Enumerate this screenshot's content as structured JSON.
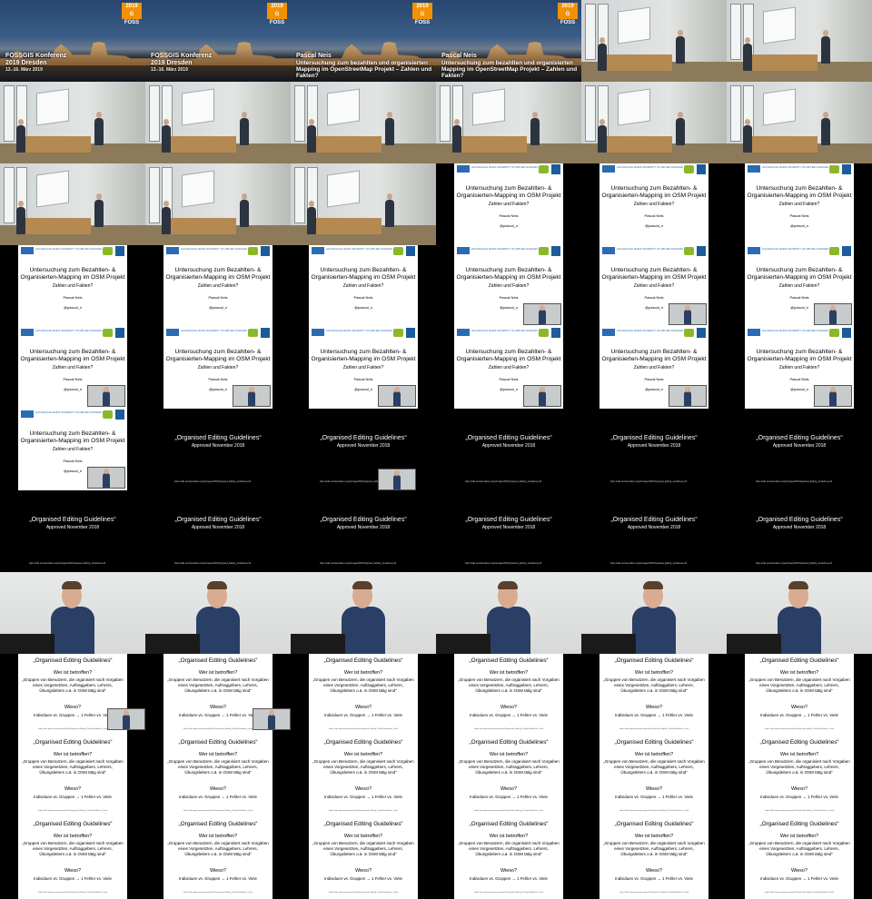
{
  "title_card": {
    "badge_year": "2019",
    "badge_letters": "G FOSS",
    "conf_title": "FOSSGIS Konferenz",
    "conf_sub": "2019 Dresden",
    "conf_date": "13.-16. März 2019",
    "speaker": "Pascal Neis",
    "talk_title": "Untersuchung zum bezahlten und organisierten Mapping im OpenStreetMap Projekt – Zahlen und Fakten?"
  },
  "slide_intro": {
    "logo_text": "HOCHSCHULE MAINZ UNIVERSITY OF APPLIED SCIENCES",
    "title": "Untersuchung zum Bezahlten- & Organisierten-Mapping im OSM Projekt",
    "subtitle": "Zahlen und Fakten?",
    "author": "Pascal Neis",
    "handle": "@pascal_n"
  },
  "slide_oeg": {
    "title": "„Organised Editing Guidelines“",
    "subtitle": "Approved November 2018",
    "url": "https://wiki.osmfoundation.org/w/images/6/6f/Organised_Editing_Guidelines.pdf"
  },
  "slide_text": {
    "title": "„Organised Editing Guidelines“",
    "q1": "Wer ist betroffen?",
    "quote": "„Gruppen von Benutzern, die organisiert nach Vorgaben eines Vorgesetzten, Auftraggebers, Lehrers, Übungsleiters o.ä. in OSM tätig sind“",
    "q2": "Wieso?",
    "answer": "Individuen vs. Gruppen → 1 Fehler vs. Viele",
    "url": "https://wiki.openstreetmap.org/wiki/Organised_Editing_Policy/Guidelines_Draft"
  },
  "layout_spec": {
    "rows": [
      [
        "title-a",
        "title-a",
        "title-b",
        "title-b",
        "room",
        "room"
      ],
      [
        "room",
        "room",
        "room",
        "room",
        "room",
        "room"
      ],
      [
        "room",
        "room",
        "room",
        "intro",
        "intro",
        "intro"
      ],
      [
        "intro",
        "intro",
        "intro",
        "intro-pip",
        "intro-pip",
        "intro-pip"
      ],
      [
        "intro-pip",
        "intro-pip",
        "intro-pip",
        "intro-pip",
        "intro-pip",
        "intro-pip"
      ],
      [
        "intro-pip",
        "oeg",
        "oeg-pip",
        "oeg",
        "oeg",
        "oeg"
      ],
      [
        "oeg",
        "oeg",
        "oeg",
        "oeg",
        "oeg",
        "oeg"
      ],
      [
        "close",
        "close",
        "close",
        "close",
        "close",
        "close"
      ],
      [
        "text-pip",
        "text-pip",
        "text",
        "text",
        "text",
        "text"
      ],
      [
        "text",
        "text",
        "text",
        "text",
        "text",
        "text"
      ],
      [
        "text",
        "text",
        "text",
        "text",
        "text",
        "text"
      ]
    ]
  }
}
